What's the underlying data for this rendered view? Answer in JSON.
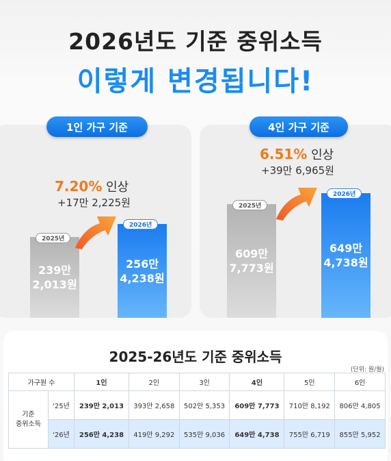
{
  "title_line1": "2026년도 기준 중위소득",
  "title_line2": "이렇게 변경됩니다!",
  "panel_1": {
    "pill": "1인 가구 기준",
    "rate_pct": "7.20%",
    "rate_word": "인상",
    "delta": "+17만 2,225원",
    "tag_2025": "2025년",
    "value_2025_line1": "239만",
    "value_2025_line2": "2,013원",
    "tag_2026": "2026년",
    "value_2026_line1": "256만",
    "value_2026_line2": "4,238원"
  },
  "panel_4": {
    "pill": "4인 가구 기준",
    "rate_pct": "6.51%",
    "rate_word": "인상",
    "delta": "+39만 6,965원",
    "tag_2025": "2025년",
    "value_2025_line1": "609만",
    "value_2025_line2": "7,773원",
    "tag_2026": "2026년",
    "value_2026_line1": "649만",
    "value_2026_line2": "4,738원"
  },
  "table": {
    "title": "2025-26년도 기준 중위소득",
    "unit": "(단위: 원/월)",
    "header": [
      "가구원 수",
      "1인",
      "2인",
      "3인",
      "4인",
      "5인",
      "6인"
    ],
    "row_label_line1": "기준",
    "row_label_line2": "중위소득",
    "rows": [
      {
        "year": "'25년",
        "cells": [
          "239만 2,013",
          "393만 2,658",
          "502만 5,353",
          "609만 7,773",
          "710만 8,192",
          "806만 4,805"
        ]
      },
      {
        "year": "'26년",
        "cells": [
          "256만 4,238",
          "419만 9,292",
          "535만 9,036",
          "649만 4,738",
          "755만 6,719",
          "855만 5,952"
        ]
      }
    ]
  },
  "colors": {
    "accent_blue": "#1a8cf0",
    "accent_orange": "#f07a1a"
  }
}
